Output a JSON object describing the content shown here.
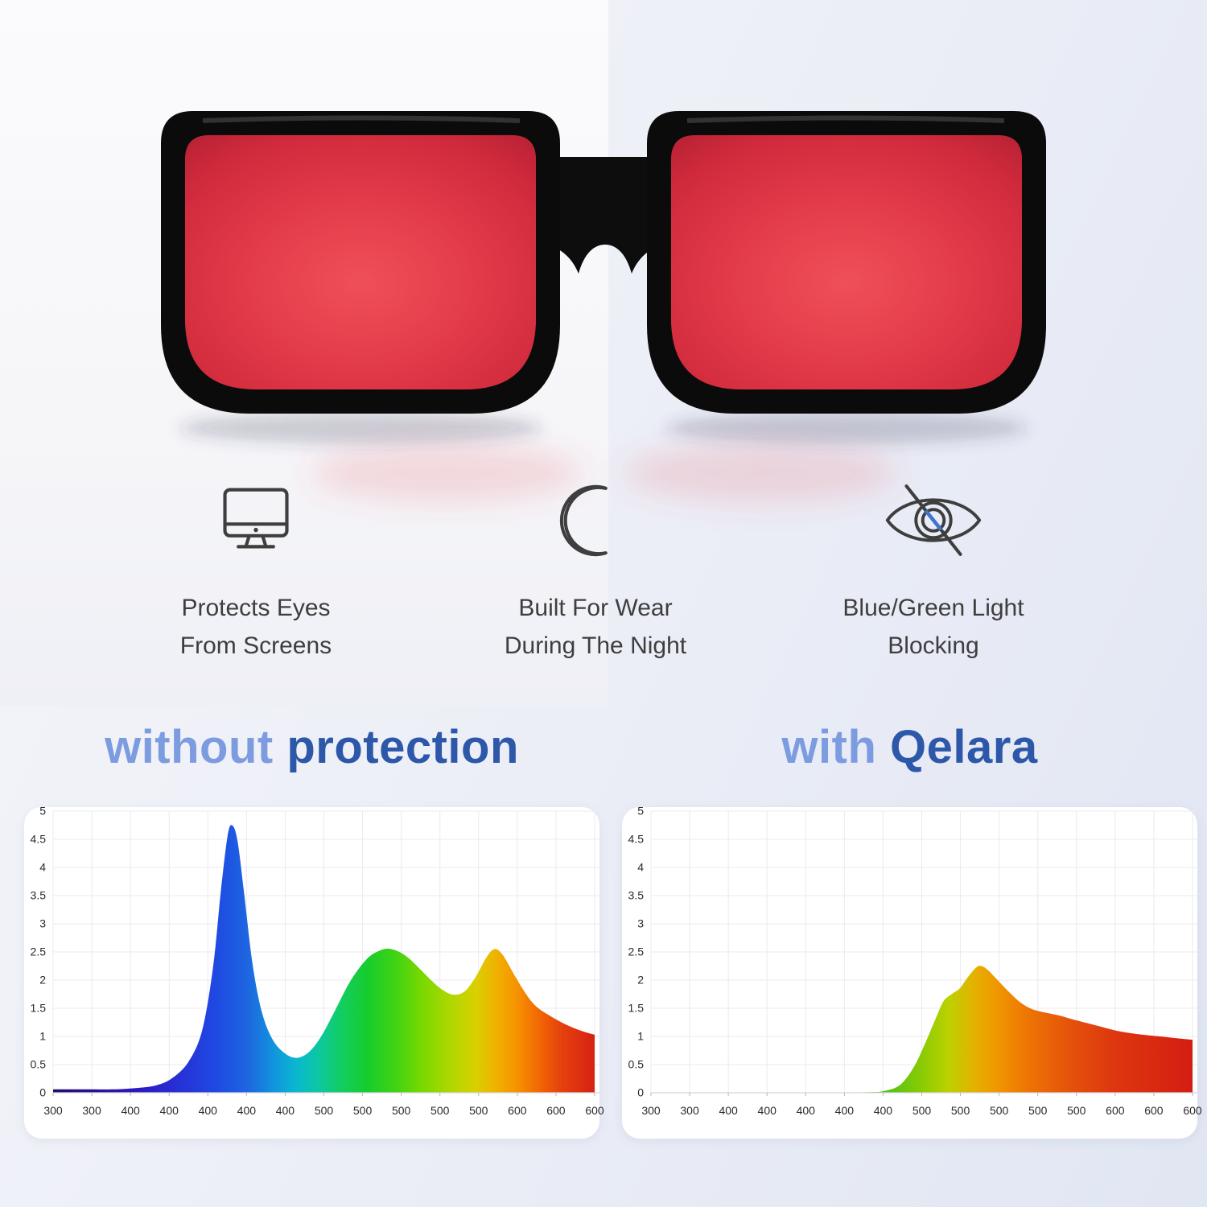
{
  "features": [
    {
      "icon": "monitor-icon",
      "lines": [
        "Protects Eyes",
        "From Screens"
      ]
    },
    {
      "icon": "moon-icon",
      "lines": [
        "Built For Wear",
        "During The Night"
      ]
    },
    {
      "icon": "eye-strike-icon",
      "lines": [
        "Blue/Green Light",
        "Blocking"
      ]
    }
  ],
  "comparison": {
    "left_heading": {
      "light": "without",
      "dark": "protection"
    },
    "right_heading": {
      "light": "with",
      "dark": "Qelara"
    }
  },
  "colors": {
    "heading_light": "#7d9ce0",
    "heading_dark": "#2d57a8",
    "feature_text": "#3e3e3e",
    "icon_stroke": "#3e3e3e",
    "icon_accent_blue": "#3f74cf",
    "lens_red": "#e23948",
    "frame_black": "#0b0b0b"
  },
  "chart_data": [
    {
      "type": "area",
      "title": "without protection",
      "x_tick_labels": [
        "300",
        "300",
        "400",
        "400",
        "400",
        "400",
        "400",
        "500",
        "500",
        "500",
        "500",
        "500",
        "600",
        "600",
        "600"
      ],
      "y_ticks": [
        0,
        0.5,
        1,
        1.5,
        2,
        2.5,
        3,
        3.5,
        4,
        4.5,
        5
      ],
      "ylim": [
        0,
        5
      ],
      "grid": true,
      "legend": "none",
      "points": [
        [
          0,
          0.06
        ],
        [
          0.06,
          0.06
        ],
        [
          0.11,
          0.06
        ],
        [
          0.15,
          0.08
        ],
        [
          0.19,
          0.13
        ],
        [
          0.22,
          0.26
        ],
        [
          0.25,
          0.55
        ],
        [
          0.275,
          1.1
        ],
        [
          0.295,
          2.2
        ],
        [
          0.31,
          3.6
        ],
        [
          0.322,
          4.55
        ],
        [
          0.33,
          4.75
        ],
        [
          0.34,
          4.5
        ],
        [
          0.352,
          3.6
        ],
        [
          0.368,
          2.3
        ],
        [
          0.385,
          1.45
        ],
        [
          0.405,
          0.95
        ],
        [
          0.428,
          0.7
        ],
        [
          0.45,
          0.62
        ],
        [
          0.472,
          0.72
        ],
        [
          0.495,
          1.0
        ],
        [
          0.52,
          1.45
        ],
        [
          0.55,
          2.0
        ],
        [
          0.58,
          2.38
        ],
        [
          0.605,
          2.53
        ],
        [
          0.625,
          2.55
        ],
        [
          0.65,
          2.44
        ],
        [
          0.675,
          2.22
        ],
        [
          0.7,
          1.98
        ],
        [
          0.72,
          1.82
        ],
        [
          0.74,
          1.74
        ],
        [
          0.76,
          1.8
        ],
        [
          0.78,
          2.05
        ],
        [
          0.8,
          2.4
        ],
        [
          0.815,
          2.55
        ],
        [
          0.83,
          2.45
        ],
        [
          0.85,
          2.12
        ],
        [
          0.87,
          1.8
        ],
        [
          0.89,
          1.55
        ],
        [
          0.915,
          1.38
        ],
        [
          0.945,
          1.22
        ],
        [
          0.975,
          1.1
        ],
        [
          1,
          1.03
        ]
      ],
      "gradient": [
        [
          0,
          "#230d66"
        ],
        [
          0.08,
          "#2a119c"
        ],
        [
          0.16,
          "#2c1ac2"
        ],
        [
          0.24,
          "#2633d8"
        ],
        [
          0.3,
          "#1f49e2"
        ],
        [
          0.36,
          "#1e66e0"
        ],
        [
          0.41,
          "#0f97dd"
        ],
        [
          0.45,
          "#0ab8cf"
        ],
        [
          0.49,
          "#0cc7a2"
        ],
        [
          0.53,
          "#12cd64"
        ],
        [
          0.58,
          "#17cc2e"
        ],
        [
          0.63,
          "#3ed313"
        ],
        [
          0.68,
          "#77d800"
        ],
        [
          0.73,
          "#abd800"
        ],
        [
          0.78,
          "#d9d000"
        ],
        [
          0.82,
          "#f0b000"
        ],
        [
          0.86,
          "#f68f00"
        ],
        [
          0.9,
          "#f16504"
        ],
        [
          0.94,
          "#e5400e"
        ],
        [
          1,
          "#d62112"
        ]
      ]
    },
    {
      "type": "area",
      "title": "with Qelara",
      "x_tick_labels": [
        "300",
        "300",
        "400",
        "400",
        "400",
        "400",
        "400",
        "500",
        "500",
        "500",
        "500",
        "500",
        "600",
        "600",
        "600"
      ],
      "y_ticks": [
        0,
        0.5,
        1,
        1.5,
        2,
        2.5,
        3,
        3.5,
        4,
        4.5,
        5
      ],
      "ylim": [
        0,
        5
      ],
      "grid": true,
      "legend": "none",
      "points": [
        [
          0,
          0
        ],
        [
          0.3,
          0
        ],
        [
          0.4,
          0.01
        ],
        [
          0.43,
          0.03
        ],
        [
          0.46,
          0.14
        ],
        [
          0.485,
          0.45
        ],
        [
          0.505,
          0.85
        ],
        [
          0.525,
          1.3
        ],
        [
          0.54,
          1.62
        ],
        [
          0.555,
          1.75
        ],
        [
          0.57,
          1.85
        ],
        [
          0.585,
          2.05
        ],
        [
          0.6,
          2.22
        ],
        [
          0.61,
          2.25
        ],
        [
          0.622,
          2.18
        ],
        [
          0.64,
          2.0
        ],
        [
          0.66,
          1.8
        ],
        [
          0.68,
          1.62
        ],
        [
          0.7,
          1.5
        ],
        [
          0.72,
          1.44
        ],
        [
          0.75,
          1.38
        ],
        [
          0.78,
          1.3
        ],
        [
          0.82,
          1.2
        ],
        [
          0.86,
          1.1
        ],
        [
          0.9,
          1.04
        ],
        [
          0.95,
          0.99
        ],
        [
          1,
          0.94
        ]
      ],
      "gradient": [
        [
          0.44,
          "#56c314"
        ],
        [
          0.5,
          "#8acb04"
        ],
        [
          0.55,
          "#bcd100"
        ],
        [
          0.6,
          "#e7af00"
        ],
        [
          0.645,
          "#f09300"
        ],
        [
          0.7,
          "#ed7303"
        ],
        [
          0.77,
          "#e5540b"
        ],
        [
          0.85,
          "#de3810"
        ],
        [
          1,
          "#d41d12"
        ]
      ]
    }
  ]
}
